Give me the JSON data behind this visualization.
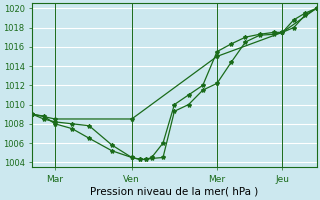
{
  "xlabel": "Pression niveau de la mer( hPa )",
  "ylim": [
    1003.5,
    1020.5
  ],
  "yticks": [
    1004,
    1006,
    1008,
    1010,
    1012,
    1014,
    1016,
    1018,
    1020
  ],
  "background_color": "#cce8ef",
  "grid_color": "#ffffff",
  "line_color": "#1a6b1a",
  "xtick_labels": [
    "Mar",
    "Ven",
    "Mer",
    "Jeu"
  ],
  "xtick_positions": [
    0.08,
    0.35,
    0.65,
    0.88
  ],
  "xlim": [
    0.0,
    1.0
  ],
  "line1_x": [
    0.0,
    0.04,
    0.08,
    0.14,
    0.2,
    0.28,
    0.35,
    0.38,
    0.4,
    0.42,
    0.46,
    0.5,
    0.55,
    0.6,
    0.65,
    0.7,
    0.75,
    0.8,
    0.85,
    0.88,
    0.92,
    0.96,
    1.0
  ],
  "line1_y": [
    1009.0,
    1008.5,
    1008.2,
    1008.0,
    1007.8,
    1005.8,
    1004.5,
    1004.3,
    1004.3,
    1004.4,
    1004.5,
    1009.3,
    1010.0,
    1011.5,
    1012.2,
    1014.4,
    1016.5,
    1017.2,
    1017.3,
    1017.5,
    1018.8,
    1019.5,
    1020.0
  ],
  "line2_x": [
    0.0,
    0.04,
    0.08,
    0.14,
    0.2,
    0.28,
    0.35,
    0.38,
    0.4,
    0.42,
    0.46,
    0.5,
    0.55,
    0.6,
    0.65,
    0.7,
    0.75,
    0.8,
    0.85,
    0.88,
    0.92,
    0.96,
    1.0
  ],
  "line2_y": [
    1009.0,
    1008.8,
    1008.0,
    1007.5,
    1006.5,
    1005.2,
    1004.5,
    1004.3,
    1004.3,
    1004.5,
    1006.0,
    1010.0,
    1011.0,
    1012.0,
    1015.5,
    1016.3,
    1017.0,
    1017.3,
    1017.5,
    1017.5,
    1018.0,
    1019.3,
    1020.0
  ],
  "line3_x": [
    0.0,
    0.08,
    0.35,
    0.65,
    0.88,
    1.0
  ],
  "line3_y": [
    1009.0,
    1008.5,
    1008.5,
    1015.0,
    1017.5,
    1020.0
  ],
  "vline_positions": [
    0.08,
    0.35,
    0.65,
    0.88
  ],
  "marker_size": 3.0,
  "linewidth": 0.9
}
